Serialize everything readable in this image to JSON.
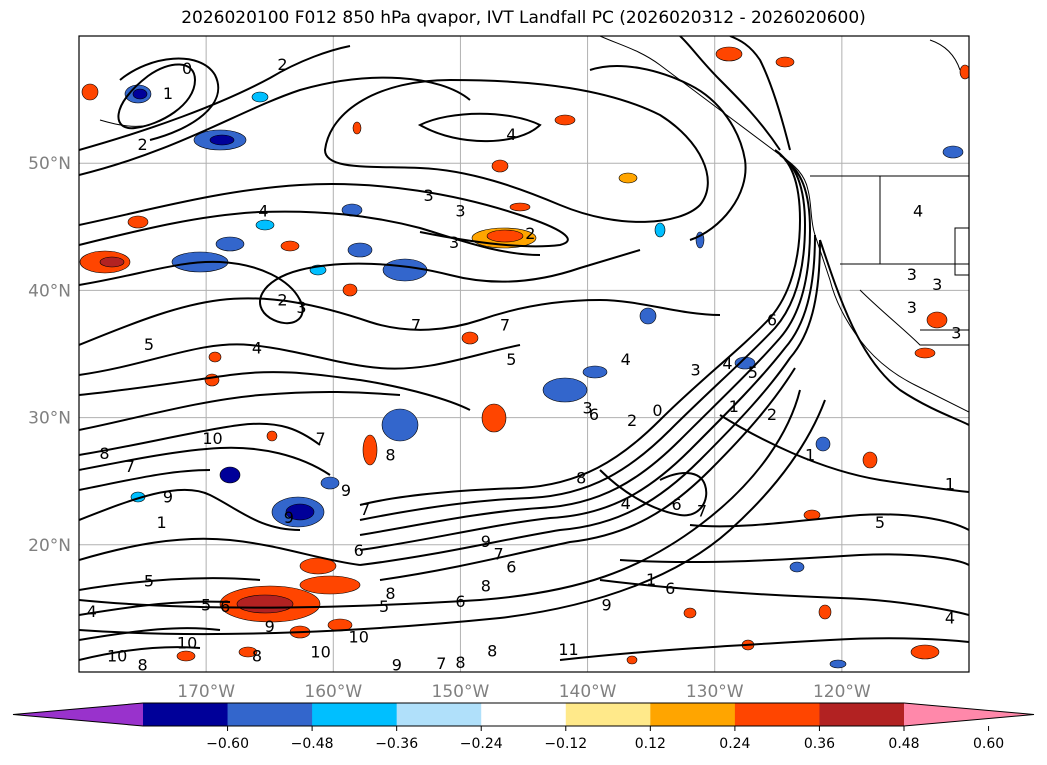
{
  "title": "2026020100 F012 850 hPa qvapor, IVT Landfall PC (2026020312 - 2026020600)",
  "map": {
    "lon_range": [
      -180,
      -110
    ],
    "lat_range": [
      10,
      60
    ],
    "lat_labels": [
      {
        "lat": 50,
        "text": "50°N"
      },
      {
        "lat": 40,
        "text": "40°N"
      },
      {
        "lat": 30,
        "text": "30°N"
      },
      {
        "lat": 20,
        "text": "20°N"
      }
    ],
    "lon_labels": [
      {
        "lon": -170,
        "text": "170°W"
      },
      {
        "lon": -160,
        "text": "160°W"
      },
      {
        "lon": -150,
        "text": "150°W"
      },
      {
        "lon": -140,
        "text": "140°W"
      },
      {
        "lon": -130,
        "text": "130°W"
      },
      {
        "lon": -120,
        "text": "120°W"
      }
    ],
    "contour_labels": [
      {
        "text": "0",
        "lon": -171.5,
        "lat": 57.5
      },
      {
        "text": "1",
        "lon": -173,
        "lat": 55.5
      },
      {
        "text": "2",
        "lon": -164,
        "lat": 57.8
      },
      {
        "text": "2",
        "lon": -175,
        "lat": 51.5
      },
      {
        "text": "4",
        "lon": -146,
        "lat": 52.3
      },
      {
        "text": "4",
        "lon": -165.5,
        "lat": 46.3
      },
      {
        "text": "3",
        "lon": -152.5,
        "lat": 47.5
      },
      {
        "text": "3",
        "lon": -150,
        "lat": 46.3
      },
      {
        "text": "3",
        "lon": -150.5,
        "lat": 43.8
      },
      {
        "text": "2",
        "lon": -144.5,
        "lat": 44.5
      },
      {
        "text": "2",
        "lon": -164,
        "lat": 39.3
      },
      {
        "text": "3",
        "lon": -162.5,
        "lat": 38.7
      },
      {
        "text": "7",
        "lon": -153.5,
        "lat": 37.3
      },
      {
        "text": "7",
        "lon": -146.5,
        "lat": 37.3
      },
      {
        "text": "5",
        "lon": -174.5,
        "lat": 35.8
      },
      {
        "text": "4",
        "lon": -166,
        "lat": 35.5
      },
      {
        "text": "5",
        "lon": -146,
        "lat": 34.6
      },
      {
        "text": "4",
        "lon": -137,
        "lat": 34.6
      },
      {
        "text": "3",
        "lon": -140,
        "lat": 30.8
      },
      {
        "text": "6",
        "lon": -139.5,
        "lat": 30.3
      },
      {
        "text": "2",
        "lon": -136.5,
        "lat": 29.8
      },
      {
        "text": "0",
        "lon": -134.5,
        "lat": 30.6
      },
      {
        "text": "3",
        "lon": -131.5,
        "lat": 33.8
      },
      {
        "text": "4",
        "lon": -129,
        "lat": 34.3
      },
      {
        "text": "5",
        "lon": -127,
        "lat": 33.6
      },
      {
        "text": "6",
        "lon": -125.5,
        "lat": 37.7
      },
      {
        "text": "2",
        "lon": -125.5,
        "lat": 30.3
      },
      {
        "text": "1",
        "lon": -128.5,
        "lat": 30.9
      },
      {
        "text": "10",
        "lon": -169.5,
        "lat": 28.4
      },
      {
        "text": "8",
        "lon": -178,
        "lat": 27.2
      },
      {
        "text": "7",
        "lon": -176,
        "lat": 26.2
      },
      {
        "text": "7",
        "lon": -161,
        "lat": 28.4
      },
      {
        "text": "8",
        "lon": -155.5,
        "lat": 27.1
      },
      {
        "text": "9",
        "lon": -173,
        "lat": 23.8
      },
      {
        "text": "9",
        "lon": -159,
        "lat": 24.3
      },
      {
        "text": "9",
        "lon": -163.5,
        "lat": 22.2
      },
      {
        "text": "1",
        "lon": -173.5,
        "lat": 21.8
      },
      {
        "text": "8",
        "lon": -140.5,
        "lat": 25.3
      },
      {
        "text": "4",
        "lon": -137,
        "lat": 23.3
      },
      {
        "text": "6",
        "lon": -133,
        "lat": 23.2
      },
      {
        "text": "7",
        "lon": -131,
        "lat": 22.7
      },
      {
        "text": "1",
        "lon": -122.5,
        "lat": 27.1
      },
      {
        "text": "5",
        "lon": -117,
        "lat": 21.8
      },
      {
        "text": "1",
        "lon": -111.5,
        "lat": 24.8
      },
      {
        "text": "7",
        "lon": -157.5,
        "lat": 22.8
      },
      {
        "text": "6",
        "lon": -158,
        "lat": 19.6
      },
      {
        "text": "9",
        "lon": -148,
        "lat": 20.3
      },
      {
        "text": "7",
        "lon": -147,
        "lat": 19.3
      },
      {
        "text": "6",
        "lon": -146,
        "lat": 18.3
      },
      {
        "text": "8",
        "lon": -148,
        "lat": 16.8
      },
      {
        "text": "1",
        "lon": -135,
        "lat": 17.3
      },
      {
        "text": "6",
        "lon": -133.5,
        "lat": 16.6
      },
      {
        "text": "9",
        "lon": -138.5,
        "lat": 15.3
      },
      {
        "text": "8",
        "lon": -155.5,
        "lat": 16.2
      },
      {
        "text": "5",
        "lon": -156,
        "lat": 15.2
      },
      {
        "text": "6",
        "lon": -150,
        "lat": 15.6
      },
      {
        "text": "5",
        "lon": -174.5,
        "lat": 17.2
      },
      {
        "text": "4",
        "lon": -179,
        "lat": 14.8
      },
      {
        "text": "5",
        "lon": -170,
        "lat": 15.3
      },
      {
        "text": "6",
        "lon": -168.5,
        "lat": 15.2
      },
      {
        "text": "9",
        "lon": -165,
        "lat": 13.6
      },
      {
        "text": "10",
        "lon": -171.5,
        "lat": 12.3
      },
      {
        "text": "10",
        "lon": -158,
        "lat": 12.8
      },
      {
        "text": "10",
        "lon": -161,
        "lat": 11.6
      },
      {
        "text": "8",
        "lon": -166,
        "lat": 11.3
      },
      {
        "text": "10",
        "lon": -177,
        "lat": 11.3
      },
      {
        "text": "8",
        "lon": -175,
        "lat": 10.6
      },
      {
        "text": "9",
        "lon": -155,
        "lat": 10.6
      },
      {
        "text": "7",
        "lon": -151.5,
        "lat": 10.7
      },
      {
        "text": "8",
        "lon": -150,
        "lat": 10.8
      },
      {
        "text": "8",
        "lon": -147.5,
        "lat": 11.7
      },
      {
        "text": "11",
        "lon": -141.5,
        "lat": 11.8
      },
      {
        "text": "4",
        "lon": -111.5,
        "lat": 14.3
      },
      {
        "text": "4",
        "lon": -114,
        "lat": 46.3
      },
      {
        "text": "3",
        "lon": -114.5,
        "lat": 41.3
      },
      {
        "text": "3",
        "lon": -112.5,
        "lat": 40.5
      },
      {
        "text": "3",
        "lon": -114.5,
        "lat": 38.7
      },
      {
        "text": "3",
        "lon": -111,
        "lat": 36.7
      }
    ]
  },
  "colorbar": {
    "colors": [
      "#9932cc",
      "#000099",
      "#3366cc",
      "#00bfff",
      "#b0e0fa",
      "#ffffff",
      "#ffe98a",
      "#ffa500",
      "#ff4500",
      "#b22222",
      "#ff88aa"
    ],
    "tick_labels": [
      "−0.60",
      "−0.48",
      "−0.36",
      "−0.24",
      "−0.12",
      "0.12",
      "0.24",
      "0.36",
      "0.48",
      "0.60"
    ]
  }
}
